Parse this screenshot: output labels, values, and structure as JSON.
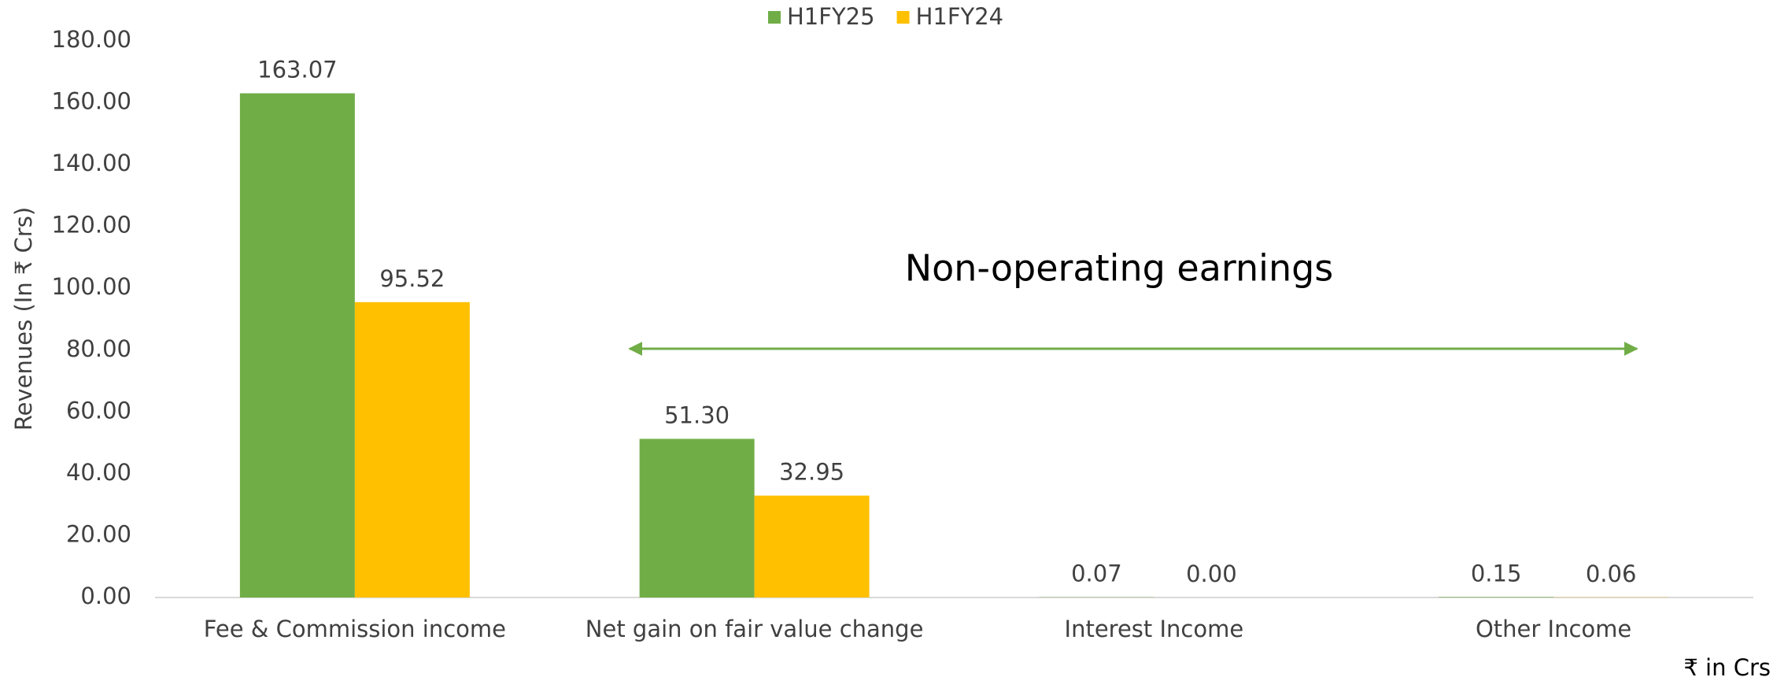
{
  "chart_data": {
    "type": "bar",
    "y_label": "Revenues (In ₹ Crs)",
    "annotation": "Non-operating earnings",
    "unit_note": "₹ in Crs",
    "categories": [
      "Fee & Commission income",
      "Net gain on fair value change",
      "Interest Income",
      "Other Income"
    ],
    "series": [
      {
        "name": "H1FY25",
        "color": "#70ad47",
        "values": [
          163.07,
          51.3,
          0.07,
          0.15
        ],
        "value_labels": [
          "163.07",
          "51.30",
          "0.07",
          "0.15"
        ]
      },
      {
        "name": "H1FY24",
        "color": "#ffc000",
        "values": [
          95.52,
          32.95,
          0,
          0.06
        ],
        "value_labels": [
          "95.52",
          "32.95",
          "0.00",
          "0.06"
        ]
      }
    ],
    "ylim": [
      0,
      180
    ],
    "yticks": [
      {
        "value": 0,
        "label": "0.00"
      },
      {
        "value": 20,
        "label": "20.00"
      },
      {
        "value": 40,
        "label": "40.00"
      },
      {
        "value": 60,
        "label": "60.00"
      },
      {
        "value": 80,
        "label": "80.00"
      },
      {
        "value": 100,
        "label": "100.00"
      },
      {
        "value": 120,
        "label": "120.00"
      },
      {
        "value": 140,
        "label": "140.00"
      },
      {
        "value": 160,
        "label": "160.00"
      },
      {
        "value": 180,
        "label": "180.00"
      }
    ],
    "grid": false,
    "legend": "top"
  }
}
